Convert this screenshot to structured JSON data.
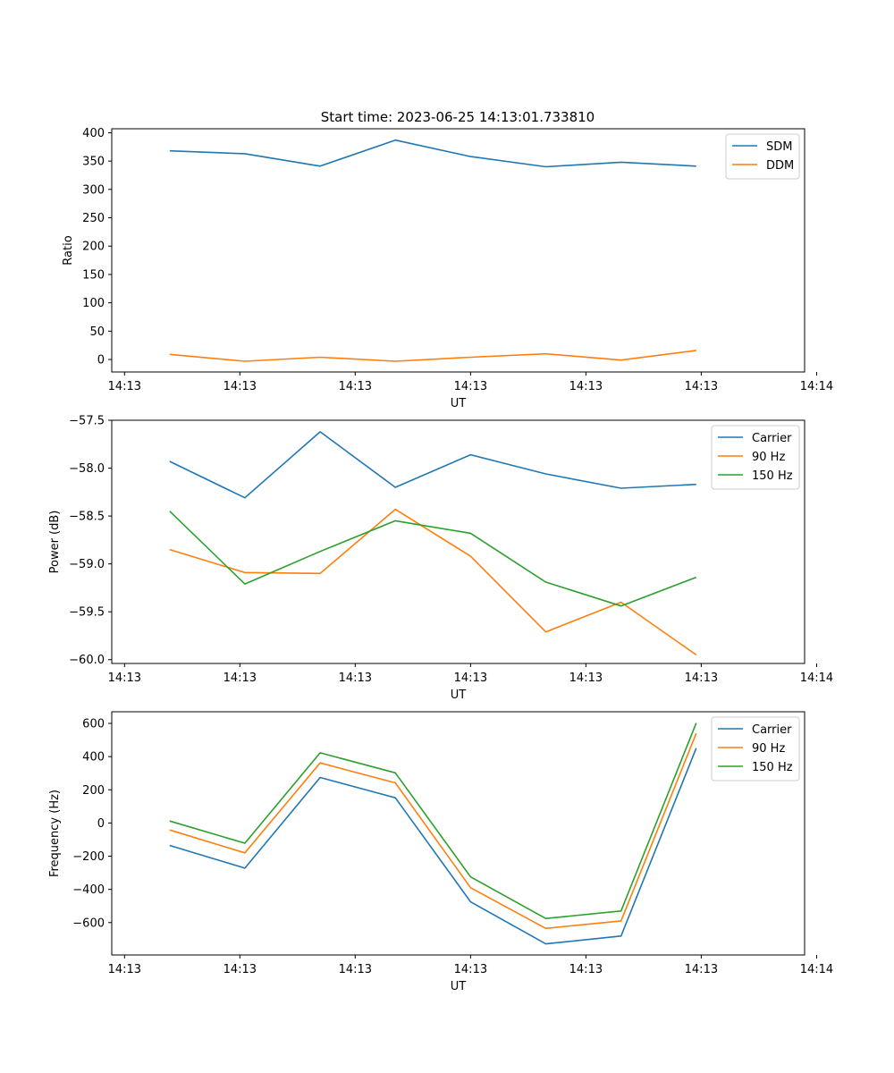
{
  "title": "Start time: 2023-06-25 14:13:01.733810",
  "colors": {
    "blue": "#1f77b4",
    "orange": "#ff7f0e",
    "green": "#2ca02c"
  },
  "chart_data": [
    {
      "type": "line",
      "title": "Start time: 2023-06-25 14:13:01.733810",
      "xlabel": "UT",
      "ylabel": "Ratio",
      "x_tick_labels": [
        "14:13",
        "14:13",
        "14:13",
        "14:13",
        "14:13",
        "14:13",
        "14:14"
      ],
      "y_ticks": [
        0,
        50,
        100,
        150,
        200,
        250,
        300,
        350,
        400
      ],
      "y_tick_labels": [
        "0",
        "50",
        "100",
        "150",
        "200",
        "250",
        "300",
        "350",
        "400"
      ],
      "ylim": [
        -22,
        407
      ],
      "x": [
        1,
        2,
        3,
        4,
        5,
        6,
        7,
        8
      ],
      "series": [
        {
          "name": "SDM",
          "color": "#1f77b4",
          "values": [
            368,
            363,
            341,
            387,
            358,
            340,
            348,
            341
          ]
        },
        {
          "name": "DDM",
          "color": "#ff7f0e",
          "values": [
            9,
            -3,
            4,
            -3,
            4,
            10,
            -1,
            16
          ]
        }
      ],
      "legend": "top-right",
      "grid": false
    },
    {
      "type": "line",
      "xlabel": "UT",
      "ylabel": "Power (dB)",
      "x_tick_labels": [
        "14:13",
        "14:13",
        "14:13",
        "14:13",
        "14:13",
        "14:13",
        "14:14"
      ],
      "y_ticks": [
        -60.0,
        -59.5,
        -59.0,
        -58.5,
        -58.0,
        -57.5
      ],
      "y_tick_labels": [
        "−60.0",
        "−59.5",
        "−59.0",
        "−58.5",
        "−58.0",
        "−57.5"
      ],
      "ylim": [
        -60.04,
        -57.5
      ],
      "x": [
        1,
        2,
        3,
        4,
        5,
        6,
        7,
        8
      ],
      "series": [
        {
          "name": "Carrier",
          "color": "#1f77b4",
          "values": [
            -57.93,
            -58.31,
            -57.62,
            -58.2,
            -57.86,
            -58.06,
            -58.21,
            -58.17
          ]
        },
        {
          "name": "90 Hz",
          "color": "#ff7f0e",
          "values": [
            -58.85,
            -59.09,
            -59.1,
            -58.43,
            -58.92,
            -59.71,
            -59.4,
            -59.95
          ]
        },
        {
          "name": "150 Hz",
          "color": "#2ca02c",
          "values": [
            -58.45,
            -59.21,
            -58.87,
            -58.55,
            -58.68,
            -59.19,
            -59.44,
            -59.14
          ]
        }
      ],
      "legend": "top-right",
      "grid": false
    },
    {
      "type": "line",
      "xlabel": "UT",
      "ylabel": "Frequency (Hz)",
      "x_tick_labels": [
        "14:13",
        "14:13",
        "14:13",
        "14:13",
        "14:13",
        "14:13",
        "14:14"
      ],
      "y_ticks": [
        -600,
        -400,
        -200,
        0,
        200,
        400,
        600
      ],
      "y_tick_labels": [
        "−600",
        "−400",
        "−200",
        "0",
        "200",
        "400",
        "600"
      ],
      "ylim": [
        -795,
        670
      ],
      "x": [
        1,
        2,
        3,
        4,
        5,
        6,
        7,
        8
      ],
      "series": [
        {
          "name": "Carrier",
          "color": "#1f77b4",
          "values": [
            -135,
            -272,
            274,
            152,
            -475,
            -728,
            -681,
            451
          ]
        },
        {
          "name": "90 Hz",
          "color": "#ff7f0e",
          "values": [
            -42,
            -180,
            362,
            242,
            -390,
            -635,
            -590,
            540
          ]
        },
        {
          "name": "150 Hz",
          "color": "#2ca02c",
          "values": [
            12,
            -122,
            423,
            302,
            -325,
            -575,
            -530,
            602
          ]
        }
      ],
      "legend": "top-right",
      "grid": false
    }
  ]
}
